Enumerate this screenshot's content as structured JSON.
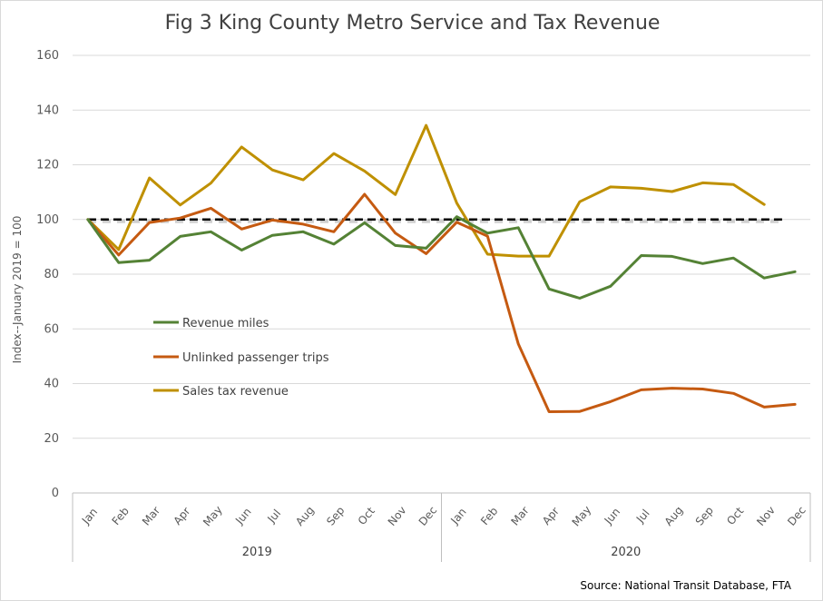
{
  "title": "Fig 3 King County Metro Service and Tax Revenue",
  "ylabel": "Index--January 2019 = 100",
  "source": "Source: National Transit Database, FTA",
  "chart_data": {
    "type": "line",
    "x": [
      "Jan",
      "Feb",
      "Mar",
      "Apr",
      "May",
      "Jun",
      "Jul",
      "Aug",
      "Sep",
      "Oct",
      "Nov",
      "Dec",
      "Jan",
      "Feb",
      "Mar",
      "Apr",
      "May",
      "Jun",
      "Jul",
      "Aug",
      "Sep",
      "Oct",
      "Nov",
      "Dec"
    ],
    "year_groups": [
      {
        "label": "2019",
        "start": 0,
        "end": 11
      },
      {
        "label": "2020",
        "start": 12,
        "end": 23
      }
    ],
    "ylim": [
      0,
      160
    ],
    "yticks": [
      0,
      20,
      40,
      60,
      80,
      100,
      120,
      140,
      160
    ],
    "grid": true,
    "legend_position": "left-center",
    "series": [
      {
        "name": "Revenue miles",
        "color": "#548235",
        "values": [
          100,
          84.2,
          85.1,
          93.8,
          95.5,
          88.8,
          94.2,
          95.5,
          91.0,
          98.8,
          90.5,
          89.5,
          101.0,
          95.0,
          97.0,
          74.6,
          71.2,
          75.6,
          86.8,
          86.5,
          83.9,
          85.9,
          78.6,
          80.9
        ]
      },
      {
        "name": "Unlinked passenger trips",
        "color": "#c55a11",
        "values": [
          100,
          87.0,
          98.9,
          100.5,
          104.1,
          96.5,
          99.8,
          98.3,
          95.5,
          109.2,
          95.0,
          87.5,
          99.0,
          93.9,
          54.5,
          29.7,
          29.8,
          33.4,
          37.7,
          38.3,
          38.0,
          36.4,
          31.4,
          32.4
        ]
      },
      {
        "name": "Sales tax revenue",
        "color": "#bf9000",
        "values": [
          100,
          89.0,
          115.2,
          105.3,
          113.3,
          126.5,
          118.1,
          114.5,
          124.1,
          117.7,
          109.1,
          134.4,
          106.0,
          87.3,
          86.6,
          86.6,
          106.5,
          111.9,
          111.4,
          110.2,
          113.4,
          112.8,
          105.5,
          null
        ]
      }
    ],
    "reference_line": {
      "value": 100
    }
  }
}
